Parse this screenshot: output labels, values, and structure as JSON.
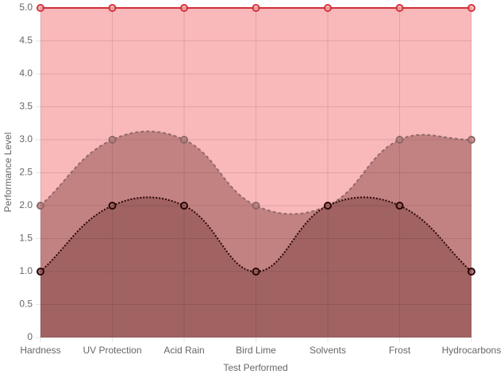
{
  "chart_data": {
    "type": "area",
    "x_label": "Test Performed",
    "y_label": "Performance Level",
    "categories": [
      "Hardness",
      "UV Protection",
      "Acid Rain",
      "Bird Lime",
      "Solvents",
      "Frost",
      "Hydrocarbons"
    ],
    "series": [
      {
        "color": "#d9343a",
        "fill": "#f9b8ba",
        "line_style": "solid",
        "values": [
          5,
          5,
          5,
          5,
          5,
          5,
          5
        ]
      },
      {
        "color": "#8f6a6a",
        "fill": "#c38282",
        "line_style": "dashed",
        "values": [
          2,
          3,
          3,
          2,
          2,
          3,
          3
        ]
      },
      {
        "color": "#2a0707",
        "fill": "#a16262",
        "line_style": "dotted",
        "values": [
          1,
          2,
          2,
          1,
          2,
          2,
          1
        ]
      }
    ],
    "ylim": [
      0,
      5
    ],
    "yticks": [
      0,
      0.5,
      {
        "value": 1,
        "label": "1.0"
      },
      1.5,
      {
        "value": 2,
        "label": "2.0"
      },
      2.5,
      {
        "value": 3,
        "label": "3.0"
      },
      3.5,
      {
        "value": 4,
        "label": "4.0"
      },
      4.5,
      {
        "value": 5,
        "label": "5.0"
      }
    ],
    "grid": true
  }
}
